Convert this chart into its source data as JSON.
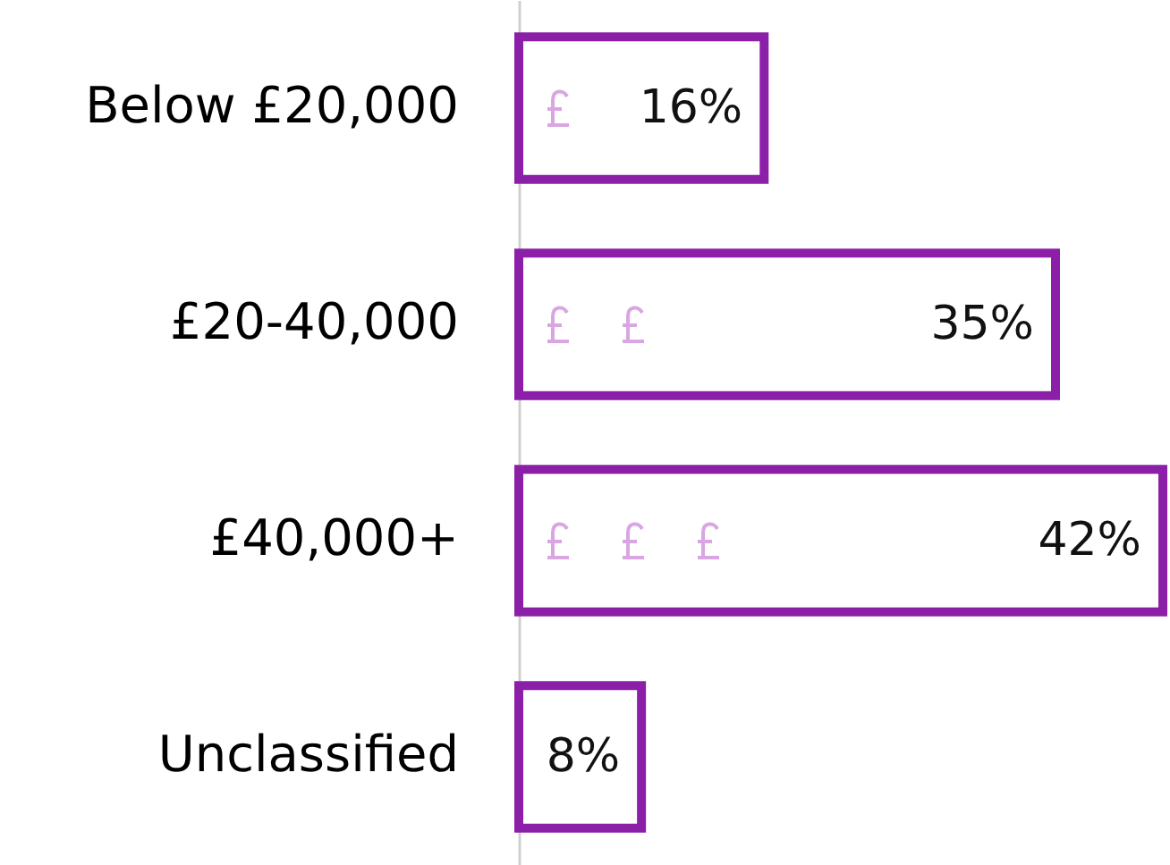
{
  "chart_data": {
    "type": "bar",
    "orientation": "horizontal",
    "categories": [
      "Below £20,000",
      "£20-40,000",
      "£40,000+",
      "Unclassified"
    ],
    "values": [
      16,
      35,
      42,
      8
    ],
    "value_labels": [
      "16%",
      "35%",
      "42%",
      "8%"
    ],
    "color": "#8b1fa8",
    "xlim": [
      0,
      42
    ],
    "tick_labels": "y"
  }
}
